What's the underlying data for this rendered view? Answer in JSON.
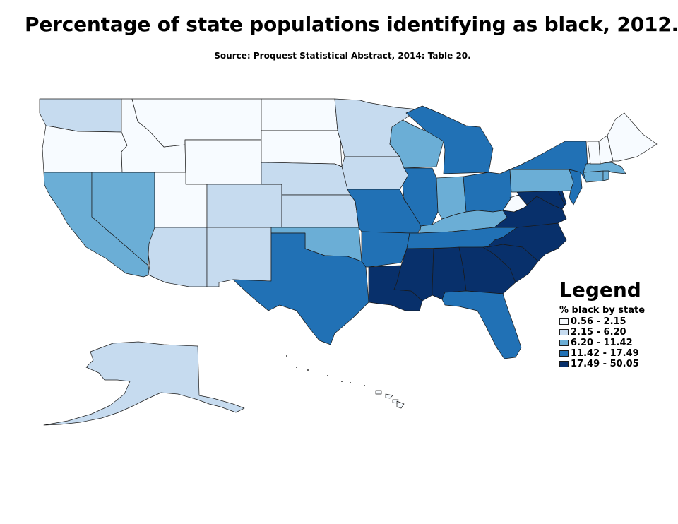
{
  "title": "Percentage of state populations identifying as black, 2012.",
  "subtitle": "Source: Proquest Statistical Abstract, 2014: Table 20.",
  "legend": {
    "title": "Legend",
    "subtitle": "% black by state",
    "classes": [
      {
        "label": "0.56 - 2.15",
        "color": "#f7fbff"
      },
      {
        "label": "2.15 - 6.20",
        "color": "#c6dbef"
      },
      {
        "label": "6.20 - 11.42",
        "color": "#6baed6"
      },
      {
        "label": "11.42 - 17.49",
        "color": "#2171b5"
      },
      {
        "label": "17.49 - 50.05",
        "color": "#08306b"
      }
    ]
  },
  "states": [
    {
      "name": "WA",
      "class": 1
    },
    {
      "name": "OR",
      "class": 0
    },
    {
      "name": "CA",
      "class": 2
    },
    {
      "name": "NV",
      "class": 2
    },
    {
      "name": "ID",
      "class": 0
    },
    {
      "name": "MT",
      "class": 0
    },
    {
      "name": "WY",
      "class": 0
    },
    {
      "name": "UT",
      "class": 0
    },
    {
      "name": "AZ",
      "class": 1
    },
    {
      "name": "CO",
      "class": 1
    },
    {
      "name": "NM",
      "class": 1
    },
    {
      "name": "ND",
      "class": 0
    },
    {
      "name": "SD",
      "class": 0
    },
    {
      "name": "NE",
      "class": 1
    },
    {
      "name": "KS",
      "class": 1
    },
    {
      "name": "OK",
      "class": 2
    },
    {
      "name": "TX",
      "class": 3
    },
    {
      "name": "MN",
      "class": 1
    },
    {
      "name": "IA",
      "class": 1
    },
    {
      "name": "MO",
      "class": 3
    },
    {
      "name": "AR",
      "class": 3
    },
    {
      "name": "LA",
      "class": 4
    },
    {
      "name": "WI",
      "class": 2
    },
    {
      "name": "IL",
      "class": 3
    },
    {
      "name": "MI",
      "class": 3
    },
    {
      "name": "IN",
      "class": 2
    },
    {
      "name": "OH",
      "class": 3
    },
    {
      "name": "KY",
      "class": 2
    },
    {
      "name": "TN",
      "class": 3
    },
    {
      "name": "MS",
      "class": 4
    },
    {
      "name": "AL",
      "class": 4
    },
    {
      "name": "GA",
      "class": 4
    },
    {
      "name": "FL",
      "class": 3
    },
    {
      "name": "SC",
      "class": 4
    },
    {
      "name": "NC",
      "class": 4
    },
    {
      "name": "VA",
      "class": 4
    },
    {
      "name": "WV",
      "class": 0
    },
    {
      "name": "MD",
      "class": 4
    },
    {
      "name": "DE",
      "class": 4
    },
    {
      "name": "PA",
      "class": 2
    },
    {
      "name": "NJ",
      "class": 3
    },
    {
      "name": "NY",
      "class": 3
    },
    {
      "name": "CT",
      "class": 2
    },
    {
      "name": "RI",
      "class": 2
    },
    {
      "name": "MA",
      "class": 2
    },
    {
      "name": "VT",
      "class": 0
    },
    {
      "name": "NH",
      "class": 0
    },
    {
      "name": "ME",
      "class": 0
    },
    {
      "name": "AK",
      "class": 1
    },
    {
      "name": "HI",
      "class": 0
    }
  ]
}
